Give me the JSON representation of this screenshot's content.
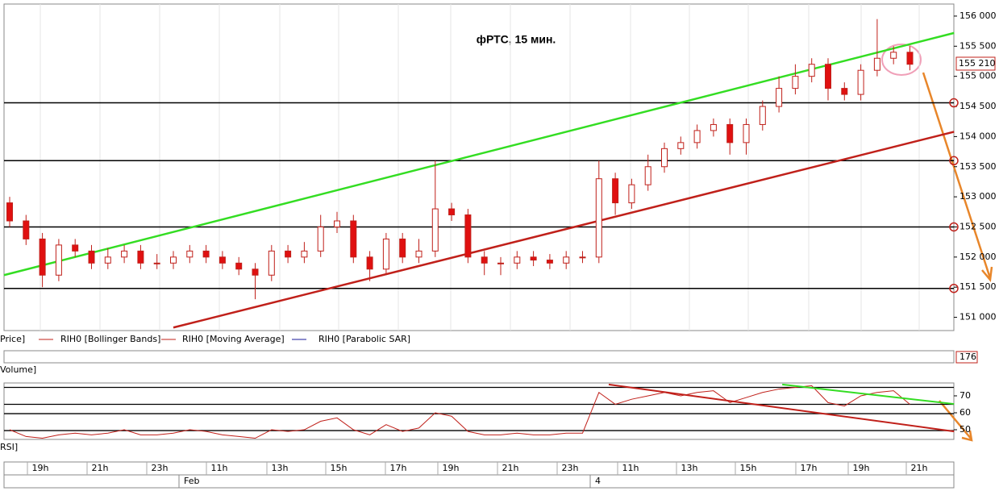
{
  "chart_data": {
    "type": "candlestick",
    "title": "фРТС,  15 мин.",
    "open": [
      152900,
      152600,
      152300,
      151700,
      152200,
      152100,
      151900,
      152000,
      152100,
      151900,
      151900,
      152000,
      152100,
      152000,
      151900,
      151800,
      151700,
      152100,
      152000,
      152100,
      152500,
      152600,
      152000,
      151800,
      152300,
      152000,
      152100,
      152800,
      152700,
      152000,
      151900,
      151900,
      152000,
      151950,
      151900,
      152000,
      152000,
      153300,
      152900,
      153200,
      153500,
      153800,
      153900,
      154100,
      154200,
      153900,
      154200,
      154500,
      154800,
      155000,
      155200,
      154800,
      154700,
      155100,
      155300,
      155400
    ],
    "high": [
      153000,
      152700,
      152400,
      152300,
      152300,
      152200,
      152150,
      152200,
      152200,
      152050,
      152100,
      152200,
      152200,
      152100,
      152000,
      151900,
      152200,
      152200,
      152250,
      152700,
      152750,
      152700,
      152100,
      152400,
      152400,
      152300,
      153600,
      152900,
      152800,
      152100,
      152000,
      152100,
      152100,
      152050,
      152100,
      152100,
      153600,
      153400,
      153300,
      153700,
      153900,
      154000,
      154200,
      154300,
      154300,
      154300,
      154600,
      155000,
      155200,
      155300,
      155300,
      154900,
      155200,
      155950,
      155500,
      155500
    ],
    "low": [
      152500,
      152200,
      151500,
      151600,
      152000,
      151800,
      151800,
      151900,
      151800,
      151800,
      151800,
      151900,
      151900,
      151800,
      151700,
      151300,
      151600,
      151900,
      151900,
      152000,
      152400,
      151900,
      151600,
      151700,
      151900,
      151900,
      152000,
      152600,
      151900,
      151700,
      151700,
      151800,
      151850,
      151800,
      151800,
      151900,
      151900,
      152700,
      152800,
      153100,
      153400,
      153700,
      153800,
      154000,
      153700,
      153700,
      154100,
      154400,
      154700,
      154900,
      154600,
      154600,
      154600,
      155000,
      155200,
      155100
    ],
    "close": [
      152600,
      152300,
      151700,
      152200,
      152100,
      151900,
      152000,
      152100,
      151900,
      151900,
      152000,
      152100,
      152000,
      151900,
      151800,
      151700,
      152100,
      152000,
      152100,
      152500,
      152600,
      152000,
      151800,
      152300,
      152000,
      152100,
      152800,
      152700,
      152000,
      151900,
      151900,
      152000,
      151950,
      151900,
      152000,
      152000,
      153300,
      152900,
      153200,
      153500,
      153800,
      153900,
      154100,
      154200,
      153900,
      154200,
      154500,
      154800,
      155000,
      155200,
      154800,
      154700,
      155100,
      155300,
      155400,
      155200
    ],
    "ylim": [
      150780,
      156200
    ],
    "yticks": [
      {
        "value": 156000,
        "label": "156 000"
      },
      {
        "value": 155500,
        "label": "155 500"
      },
      {
        "value": 155000,
        "label": "155 000"
      },
      {
        "value": 154500,
        "label": "154 500"
      },
      {
        "value": 154000,
        "label": "154 000"
      },
      {
        "value": 153500,
        "label": "153 500"
      },
      {
        "value": 153000,
        "label": "153 000"
      },
      {
        "value": 152500,
        "label": "152 500"
      },
      {
        "value": 152000,
        "label": "152 000"
      },
      {
        "value": 151500,
        "label": "151 500"
      },
      {
        "value": 151000,
        "label": "151 000"
      }
    ],
    "last_price": {
      "value": 155210,
      "label": "155 210"
    },
    "levels": [
      154560,
      153600,
      152500,
      151480
    ],
    "trendlines": [
      {
        "color": "#33dd22",
        "points": [
          [
            -0.35,
            151700
          ],
          [
            57.7,
            155720
          ]
        ]
      },
      {
        "color": "#c0201a",
        "points": [
          [
            10.0,
            150830
          ],
          [
            57.7,
            154080
          ]
        ]
      }
    ],
    "legend": [
      "Price]",
      "RIH0 [Bollinger Bands]",
      "RIH0 [Moving Average]",
      "RIH0 [Parabolic SAR]"
    ],
    "volume": {
      "label": "Volume]",
      "last": 176
    },
    "rsi": {
      "label": "RSI]",
      "values": [
        50,
        46,
        45,
        47,
        48,
        47,
        48,
        50,
        47,
        47,
        48,
        50,
        49,
        47,
        46,
        45,
        50,
        49,
        50,
        55,
        57,
        50,
        47,
        53,
        49,
        51,
        60,
        58,
        49,
        47,
        47,
        48,
        47,
        47,
        48,
        48,
        72,
        65,
        68,
        70,
        72,
        70,
        72,
        73,
        66,
        69,
        72,
        74,
        75,
        76,
        66,
        64,
        70,
        72,
        73,
        65
      ],
      "ylim": [
        44.3,
        77.6
      ],
      "yticks": [
        70,
        60,
        50
      ],
      "levels": [
        75,
        65,
        59.5,
        49.5
      ],
      "trendlines": [
        {
          "color": "#c0201a",
          "points": [
            [
              36.6,
              76.7
            ],
            [
              57.7,
              49.0
            ]
          ]
        },
        {
          "color": "#33dd22",
          "points": [
            [
              47.2,
              76.7
            ],
            [
              57.7,
              65.2
            ]
          ]
        }
      ]
    },
    "time_labels": [
      "19h",
      "21h",
      "23h",
      "11h",
      "13h",
      "15h",
      "17h",
      "19h",
      "21h",
      "23h",
      "11h",
      "13h",
      "15h",
      "17h",
      "19h",
      "21h"
    ],
    "date_labels": [
      "Feb",
      "4"
    ]
  }
}
